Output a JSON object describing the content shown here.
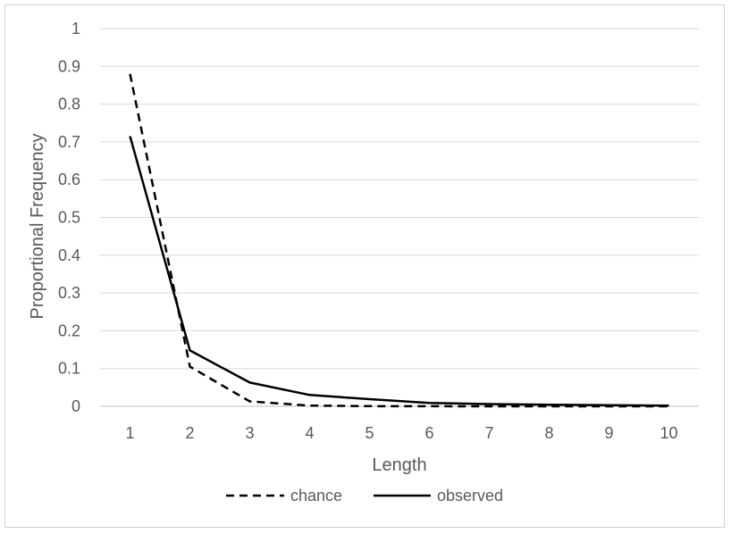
{
  "chart_data": {
    "type": "line",
    "title": "",
    "xlabel": "Length",
    "ylabel": "Proportional Frequency",
    "categories": [
      "1",
      "2",
      "3",
      "4",
      "5",
      "6",
      "7",
      "8",
      "9",
      "10"
    ],
    "ylim": [
      0,
      1
    ],
    "yticks": [
      "0",
      "0.1",
      "0.2",
      "0.3",
      "0.4",
      "0.5",
      "0.6",
      "0.7",
      "0.8",
      "0.9",
      "1"
    ],
    "grid": true,
    "legend_position": "bottom",
    "series": [
      {
        "name": "chance",
        "style": "dashed",
        "color": "#000000",
        "values": [
          0.88,
          0.105,
          0.013,
          0.002,
          0.0005,
          0.0002,
          0.0001,
          0.0,
          0.0,
          0.0
        ]
      },
      {
        "name": "observed",
        "style": "solid",
        "color": "#000000",
        "values": [
          0.715,
          0.148,
          0.063,
          0.03,
          0.019,
          0.009,
          0.006,
          0.004,
          0.003,
          0.002
        ]
      }
    ],
    "gridline_color": "#d9d9d9",
    "axis_color": "#bfbfbf"
  }
}
